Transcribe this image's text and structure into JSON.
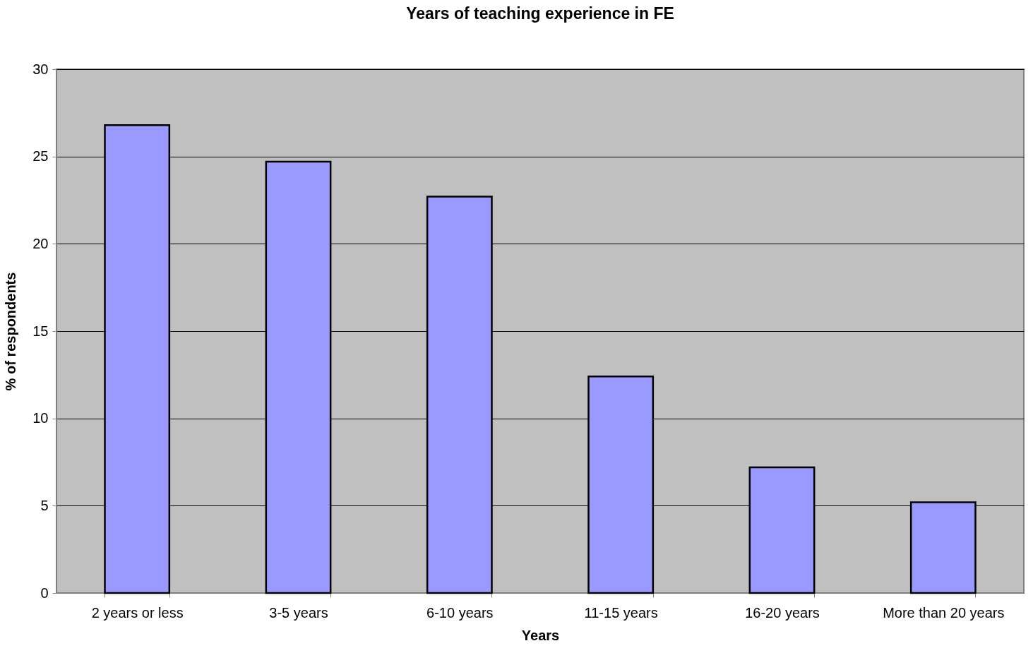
{
  "chart_data": {
    "type": "bar",
    "title": "Years of teaching experience in FE",
    "xlabel": "Years",
    "ylabel": "% of respondents",
    "categories": [
      "2 years or less",
      "3-5 years",
      "6-10 years",
      "11-15 years",
      "16-20 years",
      "More than 20 years"
    ],
    "values": [
      26.8,
      24.7,
      22.7,
      12.4,
      7.2,
      5.2
    ],
    "color": "#9999ff",
    "ylim": [
      0,
      30
    ],
    "yticks": [
      0,
      5,
      10,
      15,
      20,
      25,
      30
    ],
    "grid": "y"
  }
}
